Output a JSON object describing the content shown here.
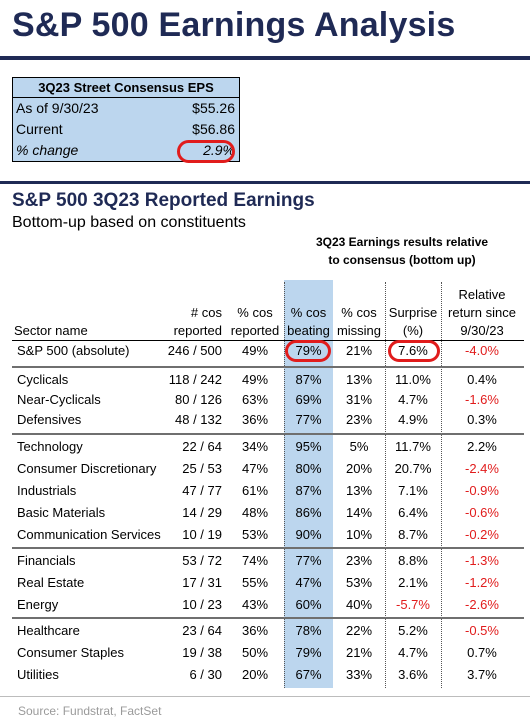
{
  "title": "S&P 500 Earnings Analysis",
  "eps_box": {
    "header": "3Q23 Street Consensus EPS",
    "rows": [
      {
        "label": "As of 9/30/23",
        "value": "$55.26"
      },
      {
        "label": "Current",
        "value": "$56.86"
      },
      {
        "label": "% change",
        "value": "2.9%"
      }
    ]
  },
  "section": {
    "title": "S&P 500 3Q23 Reported Earnings",
    "subtitle": "Bottom-up based on constituents",
    "group_header_line1": "3Q23 Earnings results relative",
    "group_header_line2": "to consensus (bottom up)"
  },
  "columns": {
    "sector": "Sector name",
    "reported_1": "# cos",
    "reported_2": "reported",
    "pct_reported_1": "% cos",
    "pct_reported_2": "reported",
    "beating_1": "% cos",
    "beating_2": "beating",
    "missing_1": "% cos",
    "missing_2": "missing",
    "surprise_1": "Surprise",
    "surprise_2": "(%)",
    "relret_1": "Relative",
    "relret_2": "return since",
    "relret_3": "9/30/23"
  },
  "rows": [
    {
      "name": "S&P 500 (absolute)",
      "reported": "246 / 500",
      "pct_reported": "49%",
      "beating": "79%",
      "missing": "21%",
      "surprise": "7.6%",
      "relret": "-4.0%"
    },
    {
      "name": "Cyclicals",
      "reported": "118 / 242",
      "pct_reported": "49%",
      "beating": "87%",
      "missing": "13%",
      "surprise": "11.0%",
      "relret": "0.4%"
    },
    {
      "name": "Near-Cyclicals",
      "reported": "80 / 126",
      "pct_reported": "63%",
      "beating": "69%",
      "missing": "31%",
      "surprise": "4.7%",
      "relret": "-1.6%"
    },
    {
      "name": "Defensives",
      "reported": "48 / 132",
      "pct_reported": "36%",
      "beating": "77%",
      "missing": "23%",
      "surprise": "4.9%",
      "relret": "0.3%"
    },
    {
      "name": "Technology",
      "reported": "22 / 64",
      "pct_reported": "34%",
      "beating": "95%",
      "missing": "5%",
      "surprise": "11.7%",
      "relret": "2.2%"
    },
    {
      "name": "Consumer Discretionary",
      "reported": "25 / 53",
      "pct_reported": "47%",
      "beating": "80%",
      "missing": "20%",
      "surprise": "20.7%",
      "relret": "-2.4%"
    },
    {
      "name": "Industrials",
      "reported": "47 / 77",
      "pct_reported": "61%",
      "beating": "87%",
      "missing": "13%",
      "surprise": "7.1%",
      "relret": "-0.9%"
    },
    {
      "name": "Basic Materials",
      "reported": "14 / 29",
      "pct_reported": "48%",
      "beating": "86%",
      "missing": "14%",
      "surprise": "6.4%",
      "relret": "-0.6%"
    },
    {
      "name": "Communication Services",
      "reported": "10 / 19",
      "pct_reported": "53%",
      "beating": "90%",
      "missing": "10%",
      "surprise": "8.7%",
      "relret": "-0.2%"
    },
    {
      "name": "Financials",
      "reported": "53 / 72",
      "pct_reported": "74%",
      "beating": "77%",
      "missing": "23%",
      "surprise": "8.8%",
      "relret": "-1.3%"
    },
    {
      "name": "Real Estate",
      "reported": "17 / 31",
      "pct_reported": "55%",
      "beating": "47%",
      "missing": "53%",
      "surprise": "2.1%",
      "relret": "-1.2%"
    },
    {
      "name": "Energy",
      "reported": "10 / 23",
      "pct_reported": "43%",
      "beating": "60%",
      "missing": "40%",
      "surprise": "-5.7%",
      "relret": "-2.6%"
    },
    {
      "name": "Healthcare",
      "reported": "23 / 64",
      "pct_reported": "36%",
      "beating": "78%",
      "missing": "22%",
      "surprise": "5.2%",
      "relret": "-0.5%"
    },
    {
      "name": "Consumer Staples",
      "reported": "19 / 38",
      "pct_reported": "50%",
      "beating": "79%",
      "missing": "21%",
      "surprise": "4.7%",
      "relret": "0.7%"
    },
    {
      "name": "Utilities",
      "reported": "6 / 30",
      "pct_reported": "20%",
      "beating": "67%",
      "missing": "33%",
      "surprise": "3.6%",
      "relret": "3.7%"
    }
  ],
  "source": "Source: Fundstrat, FactSet",
  "colors": {
    "navy": "#1f2a55",
    "highlight": "#bcd6ee",
    "negative": "#e11c1c"
  }
}
